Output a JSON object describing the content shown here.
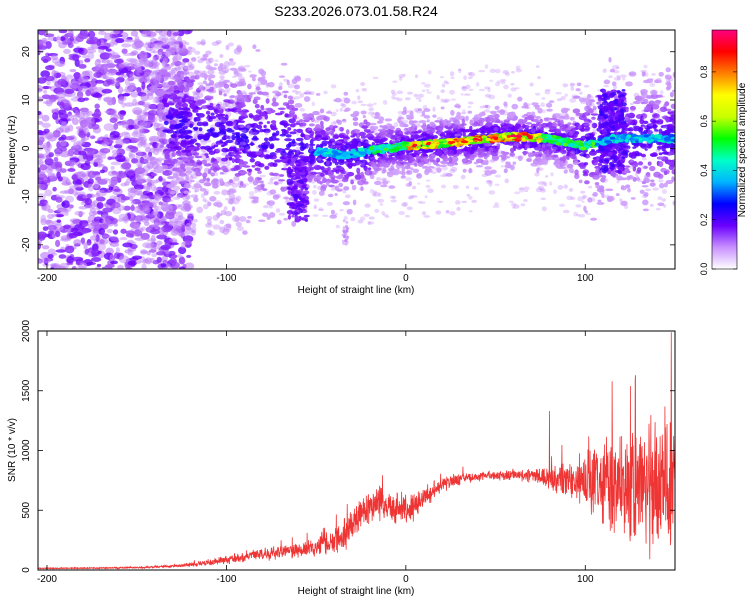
{
  "title": "S233.2026.073.01.58.R24",
  "colors": {
    "snr_line": "#ef3434",
    "axis": "#000000",
    "background": "#ffffff"
  },
  "chart_data": [
    {
      "type": "heatmap",
      "name": "spectrogram",
      "title": "S233.2026.073.01.58.R24",
      "xlabel": "Height of straight line (km)",
      "ylabel": "Frequency (Hz)",
      "xlim": [
        -205,
        150
      ],
      "ylim": [
        -25,
        24.5
      ],
      "x_ticks": [
        -200,
        -100,
        0,
        100
      ],
      "y_ticks": [
        -20,
        -10,
        0,
        10,
        20
      ],
      "colorbar": {
        "label": "Normalized spectral amplitude",
        "range": [
          0,
          0.97
        ],
        "ticks": [
          "0.0",
          "0.2",
          "0.4",
          "0.6",
          "0.8"
        ],
        "tick_values": [
          0.0,
          0.2,
          0.4,
          0.6,
          0.8
        ],
        "colormap": [
          "#ffffff",
          "#c890ff",
          "#6a00ff",
          "#0000ff",
          "#00b4ff",
          "#00ffc8",
          "#00ff00",
          "#c8ff00",
          "#ffff00",
          "#ff8000",
          "#ff0000",
          "#ff0080"
        ]
      },
      "ridge": {
        "description_points": [
          [
            -125,
            5
          ],
          [
            -100,
            3
          ],
          [
            -70,
            1
          ],
          [
            -50,
            -0.5
          ],
          [
            -35,
            -1.5
          ],
          [
            -20,
            -0.5
          ],
          [
            0,
            0.5
          ],
          [
            20,
            1
          ],
          [
            40,
            1.8
          ],
          [
            60,
            2.5
          ],
          [
            80,
            2
          ],
          [
            100,
            0.5
          ],
          [
            115,
            2
          ],
          [
            150,
            2
          ]
        ]
      }
    },
    {
      "type": "line",
      "name": "snr",
      "xlabel": "Height of straight line (km)",
      "ylabel": "SNR (10 * v/v)",
      "xlim": [
        -205,
        150
      ],
      "ylim": [
        0,
        2000
      ],
      "x_ticks": [
        -200,
        -100,
        0,
        100
      ],
      "y_ticks": [
        0,
        500,
        1000,
        1500,
        2000
      ],
      "series": [
        {
          "name": "SNR",
          "envelope_x": [
            -205,
            -180,
            -150,
            -130,
            -110,
            -90,
            -70,
            -50,
            -35,
            -25,
            -15,
            0,
            10,
            20,
            30,
            40,
            60,
            75,
            85,
            95,
            105,
            115,
            125,
            135,
            145,
            150
          ],
          "envelope_y": [
            15,
            15,
            20,
            30,
            60,
            110,
            150,
            190,
            280,
            480,
            560,
            500,
            600,
            720,
            760,
            780,
            800,
            780,
            760,
            760,
            740,
            720,
            700,
            680,
            680,
            700
          ],
          "spread": [
            5,
            6,
            8,
            12,
            30,
            50,
            70,
            90,
            160,
            180,
            180,
            150,
            120,
            80,
            60,
            40,
            50,
            80,
            150,
            250,
            350,
            450,
            550,
            650,
            700,
            700
          ],
          "peaks": [
            [
              148,
              1990
            ],
            [
              128,
              1630
            ],
            [
              115,
              1580
            ],
            [
              80,
              1330
            ]
          ]
        }
      ]
    }
  ]
}
